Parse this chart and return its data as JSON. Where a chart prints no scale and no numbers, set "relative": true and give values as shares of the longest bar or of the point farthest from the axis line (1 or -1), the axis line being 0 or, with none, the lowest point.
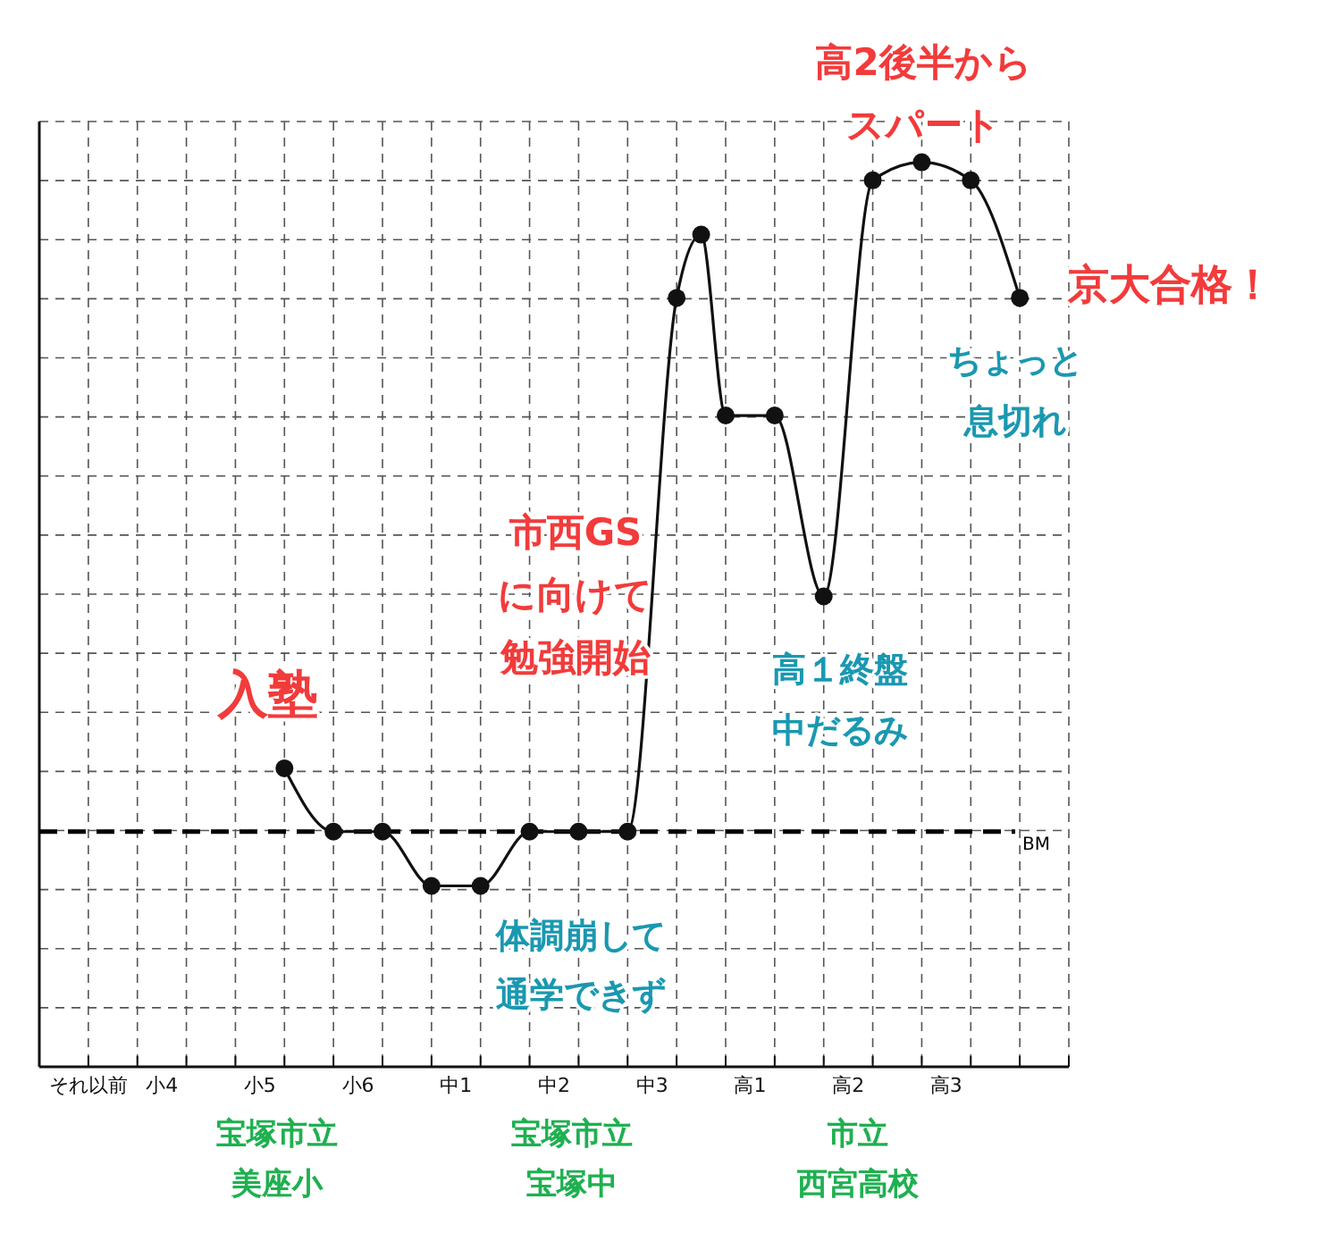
{
  "chart_data": {
    "type": "line",
    "relative": true,
    "categories": [
      null,
      "それ以前",
      null,
      null,
      "小4",
      null,
      null,
      null,
      "小5",
      null,
      null,
      null,
      "小6",
      null,
      null,
      null,
      "中1",
      null,
      null,
      null,
      "中2",
      null,
      null,
      null,
      "中3",
      null,
      null,
      null,
      "高1",
      null,
      null,
      null,
      "高2",
      null,
      null,
      null,
      "高3",
      null,
      null,
      null,
      null
    ],
    "series": [
      {
        "color": "#111111",
        "values": [
          null,
          null,
          null,
          null,
          null,
          null,
          null,
          null,
          null,
          0.33,
          null,
          0.26,
          null,
          0.26,
          null,
          0.2,
          null,
          0.2,
          null,
          0.26,
          null,
          0.26,
          null,
          0.26,
          null,
          0.85,
          0.92,
          0.72,
          null,
          0.72,
          null,
          0.52,
          null,
          0.98,
          null,
          1,
          null,
          0.98,
          null,
          0.85,
          null
        ]
      }
    ],
    "grid": true,
    "marker": "circle",
    "line_style": "solid",
    "ref_lines": [
      {
        "axis": "y",
        "value": 0.26,
        "label": "BM",
        "color": "#000000",
        "line_style": "dashed"
      }
    ],
    "annotations": [
      "高2後半からスパート",
      "京大合格！",
      "ちょっと息切れ",
      "市西GSに向けて勉強開始",
      "入塾",
      "高１終盤中だるみ",
      "体調崩して通学できず",
      "宝塚市立美座小",
      "宝塚市立宝塚中",
      "市立西宮高校"
    ]
  }
}
